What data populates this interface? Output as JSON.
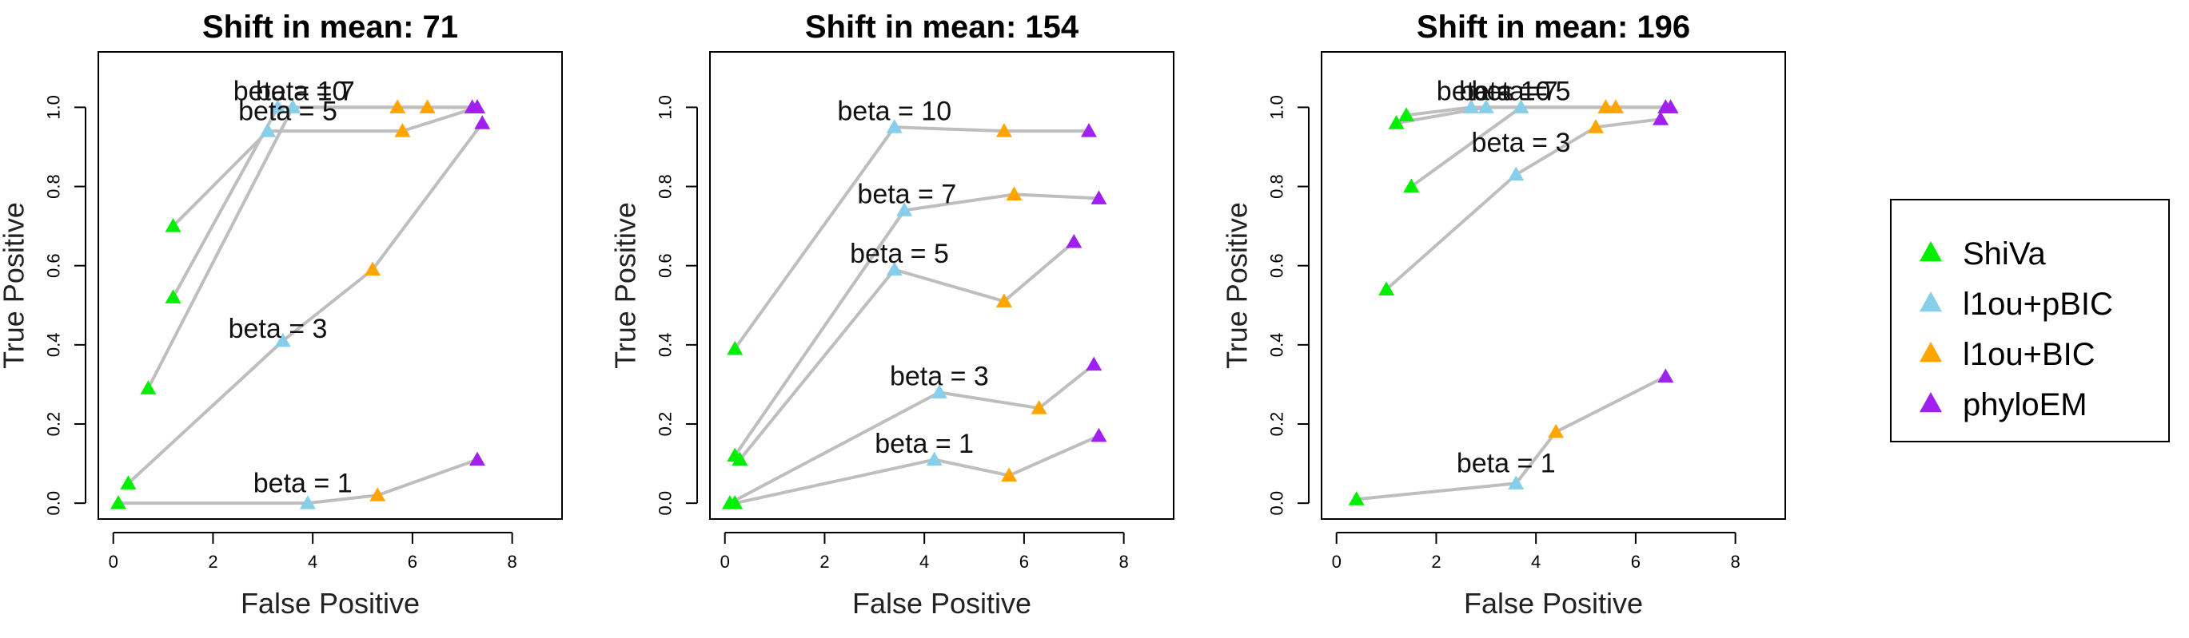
{
  "chart_data": [
    {
      "type": "line",
      "title": "Shift in mean: 71",
      "xlabel": "False Positive",
      "ylabel": "True Positive",
      "xlim": [
        -0.3,
        9.0
      ],
      "ylim": [
        -0.04,
        1.14
      ],
      "xticks": [
        0,
        2,
        4,
        6,
        8
      ],
      "yticks": [
        0.0,
        0.2,
        0.4,
        0.6,
        0.8,
        1.0
      ],
      "xtick_labels": [
        "0",
        "2",
        "4",
        "6",
        "8"
      ],
      "ytick_labels": [
        "0.0",
        "0.2",
        "0.4",
        "0.6",
        "0.8",
        "1.0"
      ],
      "series": [
        {
          "name": "beta = 1",
          "label_at": [
            3.8,
            0.05
          ],
          "x": [
            0.1,
            3.9,
            5.3,
            7.3
          ],
          "y": [
            0.0,
            0.0,
            0.02,
            0.11
          ]
        },
        {
          "name": "beta = 3",
          "label_at": [
            3.3,
            0.44
          ],
          "x": [
            0.3,
            3.4,
            5.2,
            7.4
          ],
          "y": [
            0.05,
            0.41,
            0.59,
            0.96
          ]
        },
        {
          "name": "beta = 5",
          "label_at": [
            3.5,
            0.99
          ],
          "x": [
            1.2,
            3.1,
            5.8,
            7.3
          ],
          "y": [
            0.7,
            0.94,
            0.94,
            1.0
          ]
        },
        {
          "name": "beta = 7",
          "label_at": [
            3.85,
            1.04
          ],
          "x": [
            1.2,
            3.3,
            6.3,
            7.2
          ],
          "y": [
            0.52,
            1.0,
            1.0,
            1.0
          ]
        },
        {
          "name": "beta = 10",
          "label_at": [
            3.55,
            1.04
          ],
          "x": [
            0.7,
            3.6,
            5.7,
            7.3
          ],
          "y": [
            0.29,
            1.0,
            1.0,
            1.0
          ]
        }
      ]
    },
    {
      "type": "line",
      "title": "Shift in mean: 154",
      "xlabel": "False Positive",
      "ylabel": "True Positive",
      "xlim": [
        -0.3,
        9.0
      ],
      "ylim": [
        -0.04,
        1.14
      ],
      "xticks": [
        0,
        2,
        4,
        6,
        8
      ],
      "yticks": [
        0.0,
        0.2,
        0.4,
        0.6,
        0.8,
        1.0
      ],
      "xtick_labels": [
        "0",
        "2",
        "4",
        "6",
        "8"
      ],
      "ytick_labels": [
        "0.0",
        "0.2",
        "0.4",
        "0.6",
        "0.8",
        "1.0"
      ],
      "series": [
        {
          "name": "beta = 1",
          "label_at": [
            4.0,
            0.15
          ],
          "x": [
            0.2,
            4.2,
            5.7,
            7.5
          ],
          "y": [
            0.0,
            0.11,
            0.07,
            0.17
          ]
        },
        {
          "name": "beta = 3",
          "label_at": [
            4.3,
            0.32
          ],
          "x": [
            0.1,
            4.3,
            6.3,
            7.4
          ],
          "y": [
            0.0,
            0.28,
            0.24,
            0.35
          ]
        },
        {
          "name": "beta = 5",
          "label_at": [
            3.5,
            0.63
          ],
          "x": [
            0.3,
            3.4,
            5.6,
            7.0
          ],
          "y": [
            0.11,
            0.59,
            0.51,
            0.66
          ]
        },
        {
          "name": "beta = 7",
          "label_at": [
            3.65,
            0.78
          ],
          "x": [
            0.2,
            3.6,
            5.8,
            7.5
          ],
          "y": [
            0.12,
            0.74,
            0.78,
            0.77
          ]
        },
        {
          "name": "beta = 10",
          "label_at": [
            3.4,
            0.99
          ],
          "x": [
            0.2,
            3.4,
            5.6,
            7.3
          ],
          "y": [
            0.39,
            0.95,
            0.94,
            0.94
          ]
        }
      ]
    },
    {
      "type": "line",
      "title": "Shift in mean: 196",
      "xlabel": "False Positive",
      "ylabel": "True Positive",
      "xlim": [
        -0.3,
        9.0
      ],
      "ylim": [
        -0.04,
        1.14
      ],
      "xticks": [
        0,
        2,
        4,
        6,
        8
      ],
      "yticks": [
        0.0,
        0.2,
        0.4,
        0.6,
        0.8,
        1.0
      ],
      "xtick_labels": [
        "0",
        "2",
        "4",
        "6",
        "8"
      ],
      "ytick_labels": [
        "0.0",
        "0.2",
        "0.4",
        "0.6",
        "0.8",
        "1.0"
      ],
      "series": [
        {
          "name": "beta = 1",
          "label_at": [
            3.4,
            0.1
          ],
          "x": [
            0.4,
            3.6,
            4.4,
            6.6
          ],
          "y": [
            0.01,
            0.05,
            0.18,
            0.32
          ]
        },
        {
          "name": "beta = 3",
          "label_at": [
            3.7,
            0.91
          ],
          "x": [
            1.0,
            3.6,
            5.2,
            6.5
          ],
          "y": [
            0.54,
            0.83,
            0.95,
            0.97
          ]
        },
        {
          "name": "beta = 5",
          "label_at": [
            3.7,
            1.04
          ],
          "x": [
            1.5,
            3.7,
            5.4,
            6.6
          ],
          "y": [
            0.8,
            1.0,
            1.0,
            1.0
          ]
        },
        {
          "name": "beta = 7",
          "label_at": [
            3.45,
            1.04
          ],
          "x": [
            1.4,
            2.7,
            5.6,
            6.7
          ],
          "y": [
            0.98,
            1.0,
            1.0,
            1.0
          ]
        },
        {
          "name": "beta = 10",
          "label_at": [
            3.15,
            1.04
          ],
          "x": [
            1.2,
            3.0,
            5.4,
            6.6
          ],
          "y": [
            0.96,
            1.0,
            1.0,
            1.0
          ]
        }
      ]
    }
  ],
  "legend": {
    "position": "right",
    "items": [
      {
        "label": "ShiVa",
        "color": "#00ee00"
      },
      {
        "label": "l1ou+pBIC",
        "color": "#87ceeb"
      },
      {
        "label": "l1ou+BIC",
        "color": "#ffa500"
      },
      {
        "label": "phyloEM",
        "color": "#a020f0"
      }
    ]
  },
  "line_color": "#bebebe"
}
